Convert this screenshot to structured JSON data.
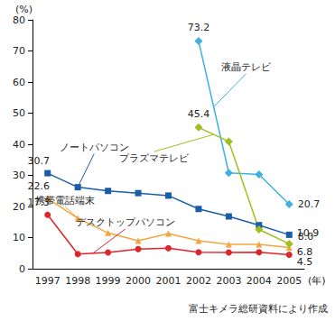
{
  "chart_data": {
    "type": "line",
    "x_label": "(年)",
    "y_label": "(%)",
    "source": "富士キメラ総研資料により作成",
    "categories": [
      "1997",
      "1998",
      "1999",
      "2000",
      "2001",
      "2002",
      "2003",
      "2004",
      "2005"
    ],
    "ylim": [
      0,
      80
    ],
    "yticks": [
      0,
      10,
      20,
      30,
      40,
      50,
      60,
      70,
      80
    ],
    "grid": false,
    "data_labels": true,
    "series": [
      {
        "name": "ノートパソコン",
        "color": "#1a5ea8",
        "marker": "square",
        "values": [
          30.7,
          26.2,
          25.0,
          24.3,
          23.5,
          19.2,
          16.8,
          14.0,
          10.9
        ],
        "value_labels": [
          "30.7",
          null,
          null,
          null,
          null,
          null,
          null,
          null,
          "10.9"
        ]
      },
      {
        "name": "携帯電話端末",
        "color": "#f2a640",
        "marker": "triangle",
        "values": [
          22.6,
          16.2,
          11.5,
          9.0,
          11.3,
          9.0,
          7.8,
          7.8,
          6.8
        ],
        "value_labels": [
          "22.6",
          null,
          null,
          null,
          null,
          null,
          null,
          null,
          "6.8"
        ]
      },
      {
        "name": "デスクトップパソコン",
        "color": "#e0242c",
        "marker": "circle",
        "values": [
          17.3,
          4.7,
          5.2,
          6.3,
          6.6,
          5.3,
          5.2,
          5.3,
          4.5
        ],
        "value_labels": [
          "17.3",
          null,
          null,
          null,
          null,
          null,
          null,
          null,
          "4.5"
        ]
      },
      {
        "name": "液晶テレビ",
        "color": "#3eb1e0",
        "marker": "diamond",
        "values": [
          null,
          null,
          null,
          null,
          null,
          73.2,
          30.8,
          30.3,
          20.7
        ],
        "value_labels": [
          null,
          null,
          null,
          null,
          null,
          "73.2",
          null,
          null,
          "20.7"
        ]
      },
      {
        "name": "プラズマテレビ",
        "color": "#9fbf1f",
        "marker": "diamond",
        "values": [
          null,
          null,
          null,
          null,
          null,
          45.4,
          40.9,
          12.6,
          8.0
        ],
        "value_labels": [
          null,
          null,
          null,
          null,
          null,
          "45.4",
          null,
          null,
          "8.0"
        ]
      }
    ]
  }
}
